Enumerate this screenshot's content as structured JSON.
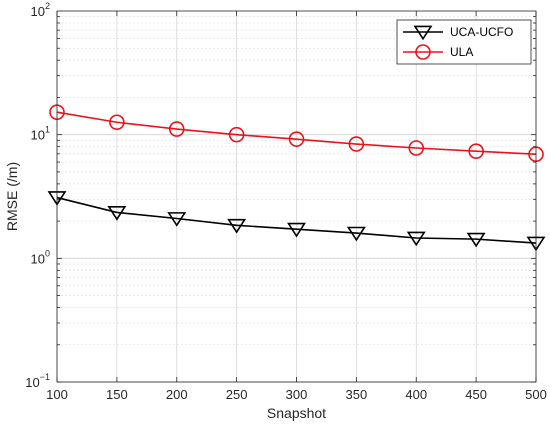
{
  "chart_data": {
    "type": "line",
    "title": "",
    "xlabel": "Snapshot",
    "ylabel": "RMSE (/m)",
    "x": [
      100,
      150,
      200,
      250,
      300,
      350,
      400,
      450,
      500
    ],
    "xlim": [
      100,
      500
    ],
    "xticks": [
      "100",
      "150",
      "200",
      "250",
      "300",
      "350",
      "400",
      "450",
      "500"
    ],
    "yscale": "log",
    "ylim": [
      0.1,
      100
    ],
    "yticks": [
      {
        "base": "10",
        "exp": "−1"
      },
      {
        "base": "10",
        "exp": "0"
      },
      {
        "base": "10",
        "exp": "1"
      },
      {
        "base": "10",
        "exp": "2"
      }
    ],
    "grid": true,
    "legend_position": "top-right",
    "series": [
      {
        "name": "UCA-UCFO",
        "color": "#000000",
        "marker": "triangle-down",
        "values": [
          3.1,
          2.35,
          2.1,
          1.85,
          1.72,
          1.6,
          1.46,
          1.43,
          1.33
        ]
      },
      {
        "name": "ULA",
        "color": "#e8141b",
        "marker": "circle",
        "values": [
          15.2,
          12.6,
          11.1,
          10.0,
          9.2,
          8.4,
          7.8,
          7.35,
          6.95
        ]
      }
    ]
  }
}
